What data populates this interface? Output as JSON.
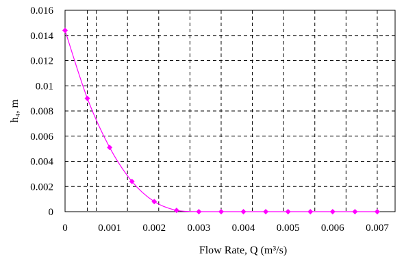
{
  "chart_data": {
    "type": "scatter",
    "xlabel": "Flow Rate, Q (m³/s)",
    "ylabel": "h₄, m",
    "xlim": [
      0,
      0.0074
    ],
    "ylim": [
      0,
      0.016
    ],
    "x_ticks": [
      "0",
      "0.001",
      "0.002",
      "0.003",
      "0.004",
      "0.005",
      "0.006",
      "0.007"
    ],
    "x_tick_values": [
      0,
      0.001,
      0.002,
      0.003,
      0.004,
      0.005,
      0.006,
      0.007
    ],
    "y_ticks": [
      "0",
      "0.002",
      "0.004",
      "0.006",
      "0.008",
      "0.01",
      "0.012",
      "0.014",
      "0.016"
    ],
    "y_tick_values": [
      0,
      0.002,
      0.004,
      0.006,
      0.008,
      0.01,
      0.012,
      0.014,
      0.016
    ],
    "x_gridlines": [
      0.0005,
      0.0007,
      0.0014,
      0.0021,
      0.0028,
      0.0035,
      0.0042,
      0.0049,
      0.0056,
      0.0063,
      0.007
    ],
    "y_gridlines": [
      0.002,
      0.004,
      0.006,
      0.008,
      0.01,
      0.012,
      0.014
    ],
    "grid": "dashed",
    "series": [
      {
        "color": "#ff00ff",
        "marker": "diamond",
        "line": "smooth",
        "x": [
          0,
          0.0005,
          0.001,
          0.0015,
          0.002,
          0.0025,
          0.003,
          0.0035,
          0.004,
          0.0045,
          0.005,
          0.0055,
          0.006,
          0.0065,
          0.007
        ],
        "y": [
          0.0144,
          0.009,
          0.0051,
          0.0024,
          0.0008,
          0.0001,
          0,
          0,
          0,
          0,
          0,
          0,
          0,
          0,
          0
        ]
      }
    ]
  }
}
